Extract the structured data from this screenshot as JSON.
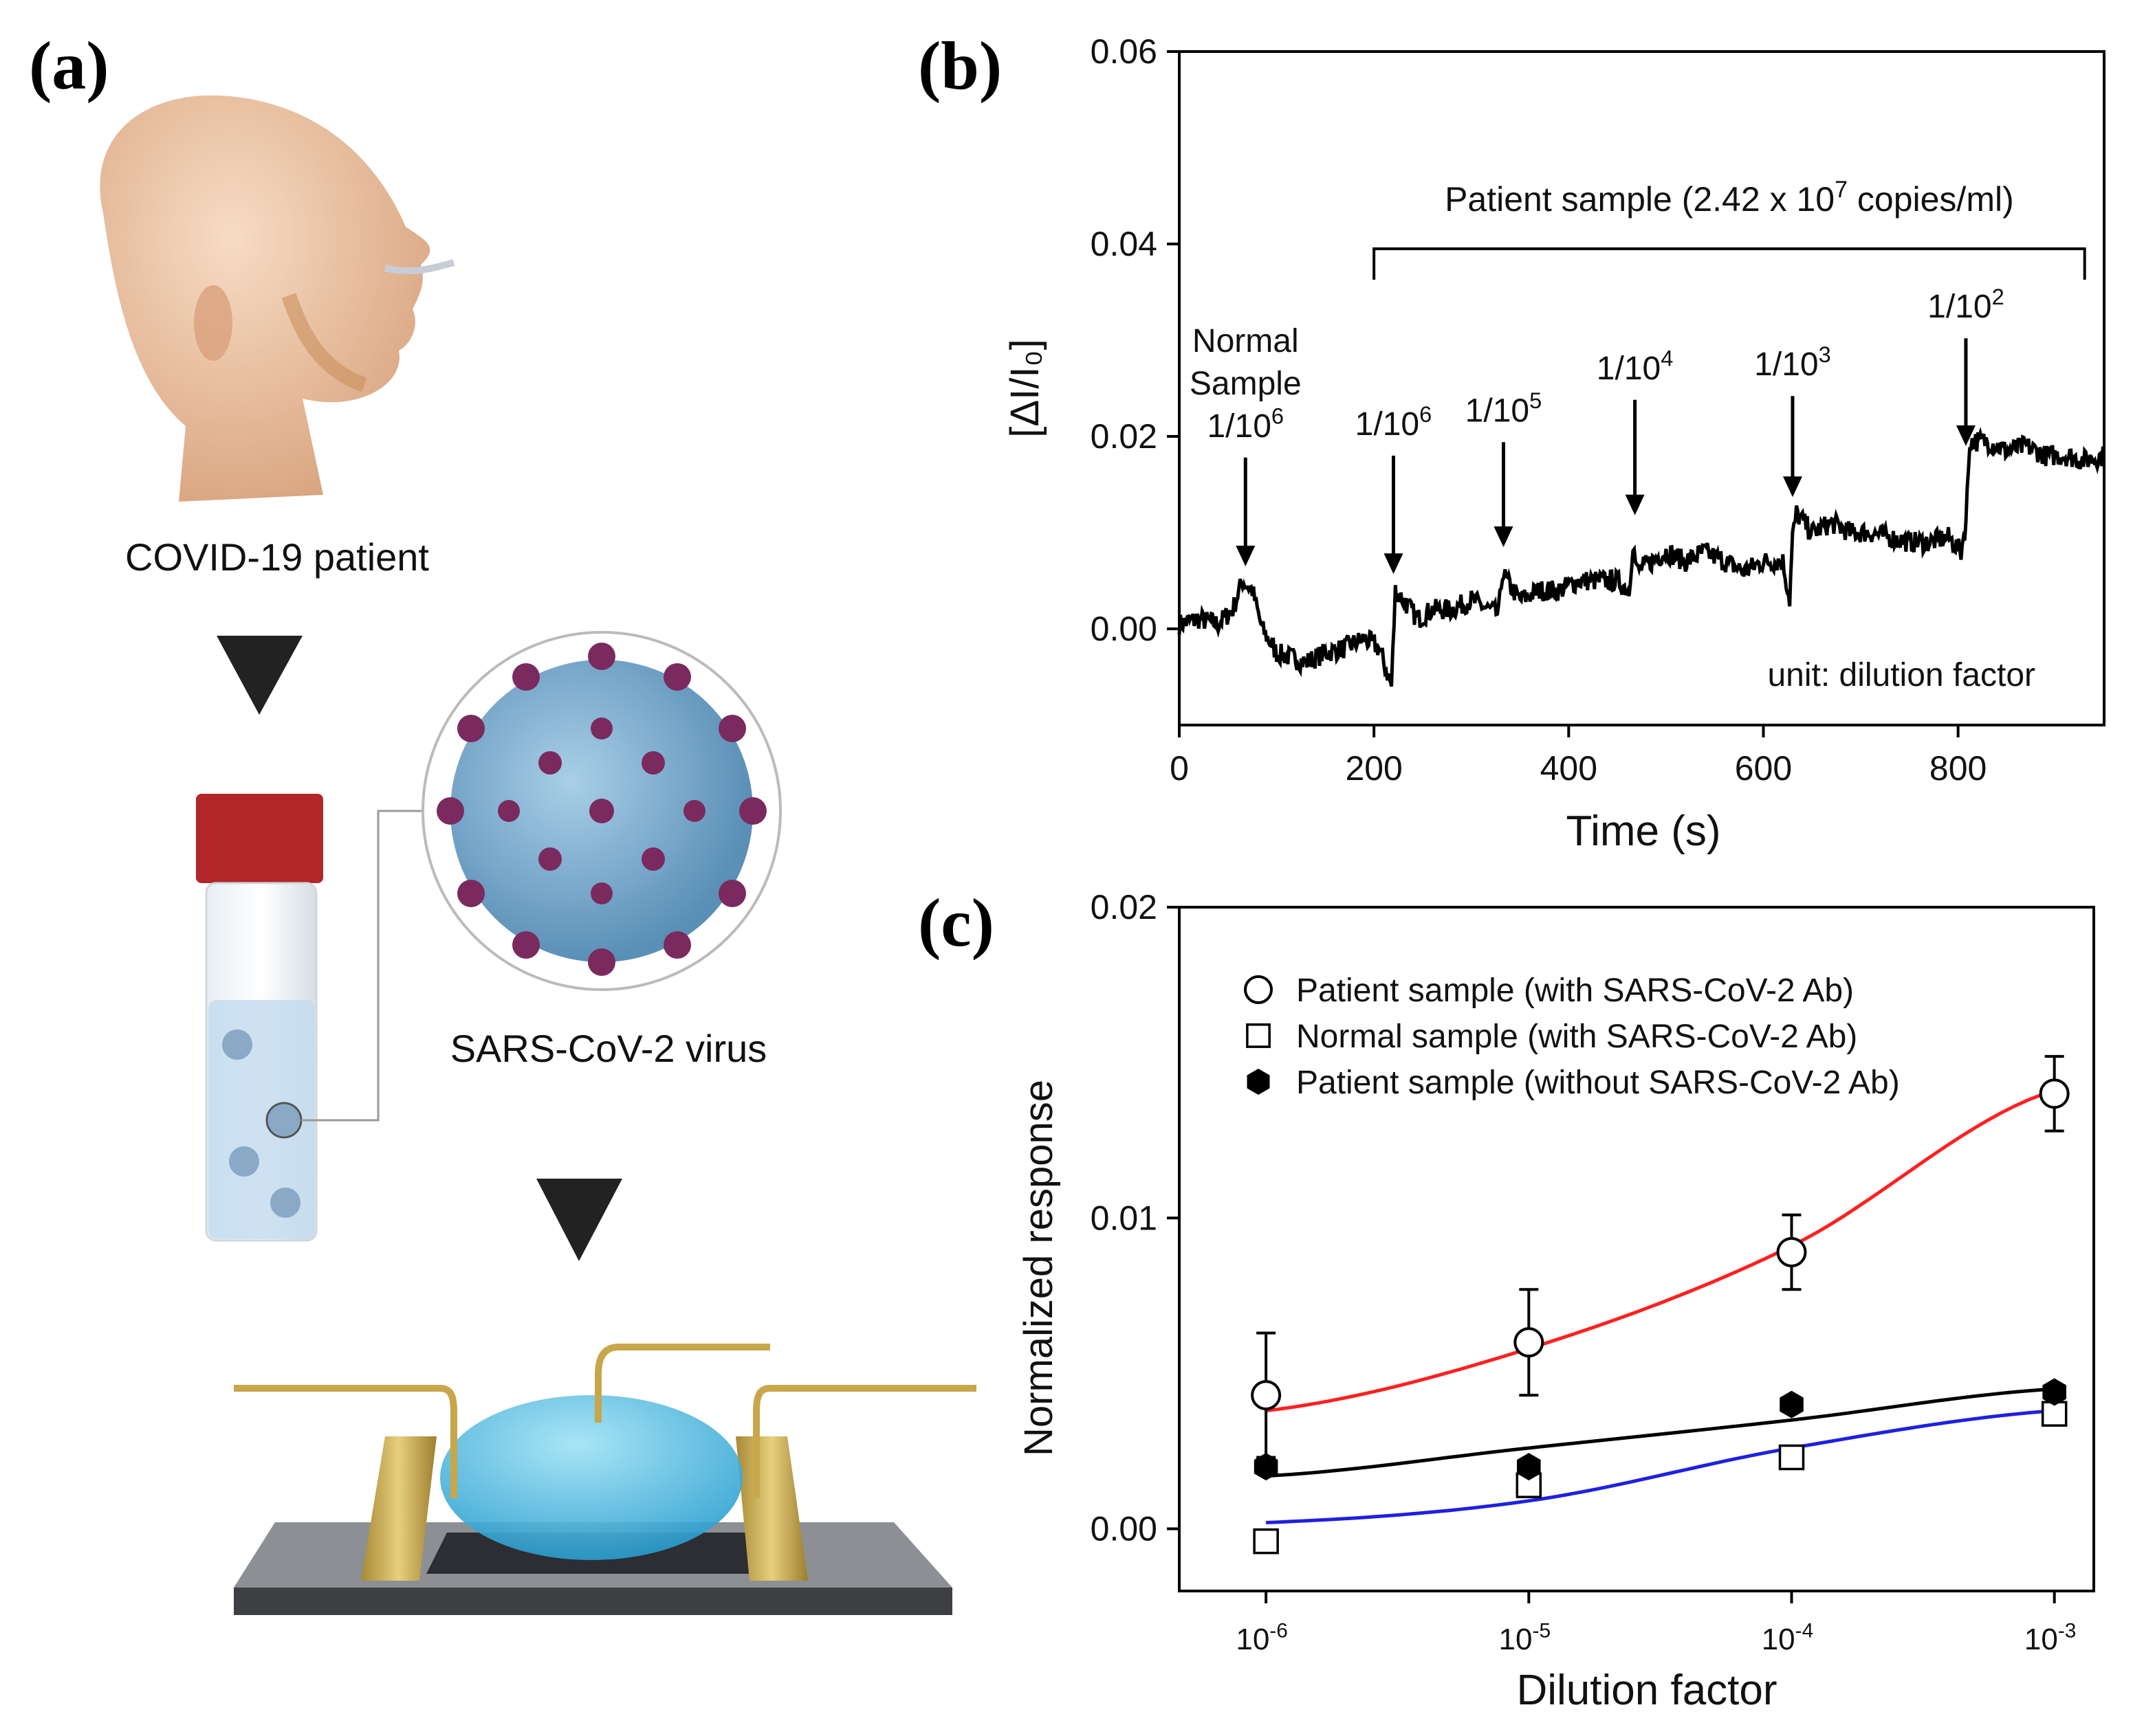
{
  "panels": {
    "a": "(a)",
    "b": "(b)",
    "c": "(c)"
  },
  "panel_a": {
    "step1_caption": "COVID-19 patient",
    "step2_caption": "SARS-CoV-2 virus"
  },
  "colors": {
    "trace": "#000000",
    "fit_patient": "#ff2020",
    "fit_normal": "#2020e0",
    "fit_patient_noab": "#000000",
    "skin": "#f2c9a8",
    "virus_body": "#7fb2d8",
    "virus_spike": "#7a2a5e",
    "cap": "#b3262a",
    "liquid": "#bcd9f0",
    "gold": "#c8a64a",
    "drop": "#43b8e0"
  },
  "chart_data": [
    {
      "type": "line",
      "panel": "b",
      "title": "",
      "xlabel": "Time (s)",
      "ylabel": "[ΔI/I₀]",
      "xlim": [
        0,
        950
      ],
      "ylim": [
        -0.01,
        0.06
      ],
      "xticks": [
        0,
        200,
        400,
        600,
        800
      ],
      "yticks": [
        0.0,
        0.02,
        0.04,
        0.06
      ],
      "ytick_labels": [
        "0.00",
        "0.02",
        "0.04",
        "0.06"
      ],
      "bracket": {
        "label_prefix": "Patient sample (2.42 x 10",
        "label_exp": "7",
        "label_suffix": " copies/ml)",
        "x_start": 200,
        "x_end": 930,
        "y": 0.0395
      },
      "note": "unit: dilution factor",
      "annotations": [
        {
          "lines": [
            "Normal",
            "Sample"
          ],
          "base": "1/10",
          "exp": "6",
          "x": 68
        },
        {
          "lines": [],
          "base": "1/10",
          "exp": "6",
          "x": 220
        },
        {
          "lines": [],
          "base": "1/10",
          "exp": "5",
          "x": 333
        },
        {
          "lines": [],
          "base": "1/10",
          "exp": "4",
          "x": 468
        },
        {
          "lines": [],
          "base": "1/10",
          "exp": "3",
          "x": 630
        },
        {
          "lines": [],
          "base": "1/10",
          "exp": "2",
          "x": 808
        }
      ],
      "series": [
        {
          "name": "response",
          "x": [
            0,
            20,
            40,
            55,
            65,
            75,
            85,
            100,
            115,
            130,
            150,
            170,
            190,
            205,
            215,
            218,
            222,
            230,
            245,
            260,
            280,
            300,
            318,
            328,
            332,
            336,
            350,
            370,
            390,
            410,
            430,
            450,
            462,
            466,
            470,
            485,
            500,
            520,
            540,
            560,
            580,
            600,
            620,
            627,
            630,
            634,
            650,
            670,
            690,
            710,
            730,
            750,
            770,
            790,
            803,
            808,
            812,
            830,
            850,
            870,
            890,
            910,
            930,
            950
          ],
          "values": [
            0.0005,
            0.001,
            0.0005,
            0.002,
            0.005,
            0.004,
            0.0,
            -0.0025,
            -0.003,
            -0.0035,
            -0.0025,
            -0.002,
            -0.001,
            -0.002,
            -0.005,
            -0.006,
            0.004,
            0.003,
            0.001,
            0.002,
            0.002,
            0.003,
            0.002,
            0.0015,
            0.006,
            0.005,
            0.003,
            0.004,
            0.004,
            0.005,
            0.005,
            0.005,
            0.004,
            0.009,
            0.006,
            0.007,
            0.008,
            0.007,
            0.008,
            0.007,
            0.006,
            0.007,
            0.007,
            0.003,
            0.0095,
            0.012,
            0.01,
            0.011,
            0.01,
            0.01,
            0.0095,
            0.009,
            0.009,
            0.0095,
            0.008,
            0.011,
            0.0195,
            0.0195,
            0.0185,
            0.019,
            0.018,
            0.018,
            0.0175,
            0.018
          ]
        }
      ]
    },
    {
      "type": "scatter",
      "panel": "c",
      "title": "",
      "xlabel": "Dilution factor",
      "ylabel": "Normalized response",
      "x_categories": [
        "10",
        "10",
        "10",
        "10"
      ],
      "x_exponents": [
        "-6",
        "-5",
        "-4",
        "-3"
      ],
      "x": [
        -6,
        -5,
        -4,
        -3
      ],
      "xlim": [
        -6.33,
        -2.85
      ],
      "ylim": [
        -0.002,
        0.02
      ],
      "yticks": [
        0.0,
        0.01,
        0.02
      ],
      "ytick_labels": [
        "0.00",
        "0.01",
        "0.02"
      ],
      "legend_position": "top-left",
      "series": [
        {
          "name": "Patient sample (with SARS-CoV-2 Ab)",
          "marker": "open-circle",
          "values": [
            0.0043,
            0.006,
            0.0089,
            0.014
          ],
          "errors": [
            0.002,
            0.0017,
            0.0012,
            0.0012
          ],
          "fit": [
            0.0038,
            0.0058,
            0.0091,
            0.0141
          ],
          "fit_color": "#ff2020"
        },
        {
          "name": "Normal sample (with SARS-CoV-2 Ab)",
          "marker": "open-square",
          "values": [
            -0.0004,
            0.0014,
            0.0023,
            0.0037
          ],
          "errors": [],
          "fit": [
            0.0002,
            0.0009,
            0.0026,
            0.0038
          ],
          "fit_color": "#2020e0"
        },
        {
          "name": "Patient sample (without SARS-CoV-2 Ab)",
          "marker": "filled-hexagon",
          "values": [
            0.002,
            0.002,
            0.004,
            0.0044
          ],
          "errors": [],
          "fit": [
            0.0017,
            0.0026,
            0.0035,
            0.0045
          ],
          "fit_color": "#000000"
        }
      ]
    }
  ]
}
